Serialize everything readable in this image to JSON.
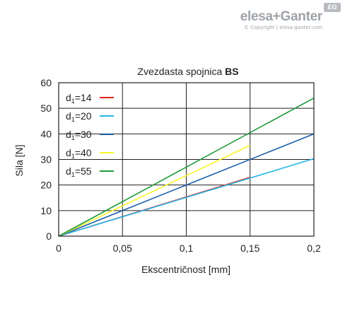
{
  "brand": {
    "logo_text": "elesa+Ganter",
    "copyright": "© Copyright | elesa-ganter.com",
    "badge": "EG"
  },
  "chart_data": {
    "type": "line",
    "title": "Zvezdasta spojnica ",
    "title_bold": "BS",
    "xlabel": "Ekscentričnost [mm]",
    "ylabel": "Sila [N]",
    "xlim": [
      0,
      0.2
    ],
    "ylim": [
      0,
      60
    ],
    "grid": true,
    "legend_placement": "top-left",
    "x_ticks": [
      0,
      0.05,
      0.1,
      0.15,
      0.2
    ],
    "x_tick_labels": [
      "0",
      "0,05",
      "0,1",
      "0,15",
      "0,2"
    ],
    "y_ticks": [
      0,
      10,
      20,
      30,
      40,
      50,
      60
    ],
    "y_tick_labels": [
      "0",
      "10",
      "20",
      "30",
      "40",
      "50",
      "60"
    ],
    "series": [
      {
        "name": "d1=14",
        "sub_base": "d",
        "sub_index": "1",
        "sub_rest": "=14",
        "color": "#e2231a",
        "x": [
          0,
          0.15
        ],
        "y": [
          0,
          23
        ]
      },
      {
        "name": "d1=20",
        "sub_base": "d",
        "sub_index": "1",
        "sub_rest": "=20",
        "color": "#24b6e8",
        "x": [
          0,
          0.2
        ],
        "y": [
          0,
          30.3
        ]
      },
      {
        "name": "d1=30",
        "sub_base": "d",
        "sub_index": "1",
        "sub_rest": "=30",
        "color": "#1a5fa8",
        "x": [
          0,
          0.2
        ],
        "y": [
          0,
          40
        ]
      },
      {
        "name": "d1=40",
        "sub_base": "d",
        "sub_index": "1",
        "sub_rest": "=40",
        "color": "#f5f52a",
        "x": [
          0,
          0.15
        ],
        "y": [
          0,
          35.5
        ]
      },
      {
        "name": "d1=55",
        "sub_base": "d",
        "sub_index": "1",
        "sub_rest": "=55",
        "color": "#1e9b3a",
        "x": [
          0,
          0.2
        ],
        "y": [
          0,
          54
        ]
      }
    ]
  }
}
